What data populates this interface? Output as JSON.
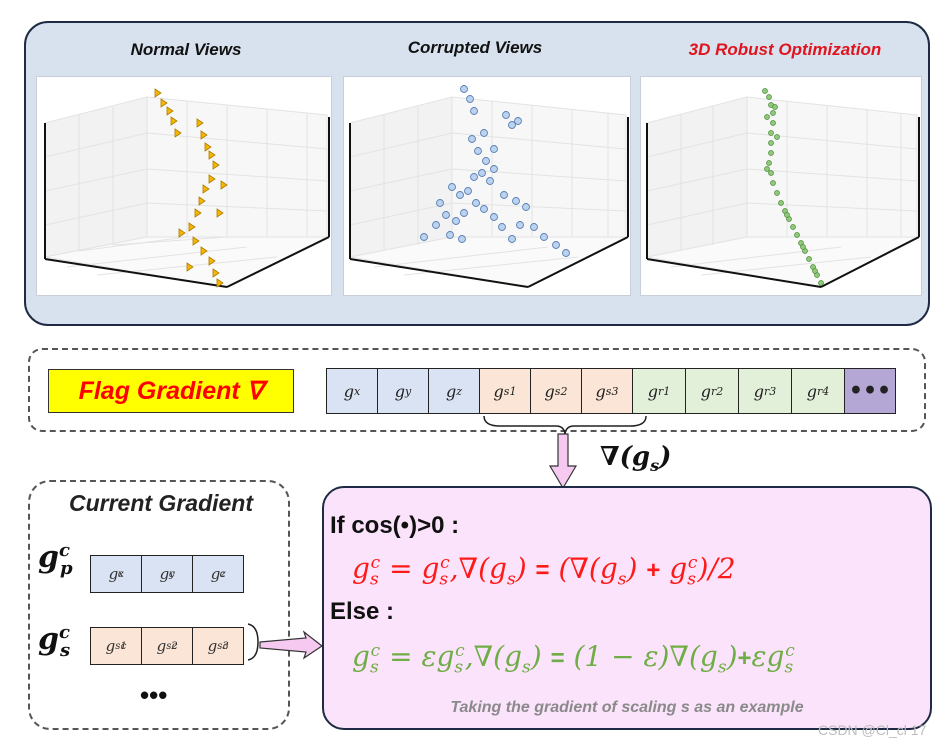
{
  "views": {
    "normal_title": "Normal Views",
    "corrupted_title": "Corrupted Views",
    "robust_title": "3D Robust Optimization",
    "robust_title_color": "#e0141e"
  },
  "flag": {
    "label": "Flag Gradient ∇",
    "cells": [
      {
        "base": "g",
        "sub": "x",
        "color": "blue"
      },
      {
        "base": "g",
        "sub": "y",
        "color": "blue"
      },
      {
        "base": "g",
        "sub": "z",
        "color": "blue"
      },
      {
        "base": "g",
        "sub": "s1",
        "color": "orange"
      },
      {
        "base": "g",
        "sub": "s2",
        "color": "orange"
      },
      {
        "base": "g",
        "sub": "s3",
        "color": "orange"
      },
      {
        "base": "g",
        "sub": "r1",
        "color": "green"
      },
      {
        "base": "g",
        "sub": "r2",
        "color": "green"
      },
      {
        "base": "g",
        "sub": "r3",
        "color": "green"
      },
      {
        "base": "g",
        "sub": "r4",
        "color": "green"
      },
      {
        "base": "•••",
        "sub": "",
        "color": "purple"
      }
    ],
    "arrow_label_main": "∇(g",
    "arrow_label_sub": "s",
    "arrow_label_close": ")"
  },
  "current": {
    "title": "Current Gradient",
    "p_symbol": "g",
    "p_sup": "c",
    "p_sub": "p",
    "s_symbol": "g",
    "s_sup": "c",
    "s_sub": "s",
    "p_cells": [
      "x",
      "y",
      "z"
    ],
    "s_cells": [
      "s1",
      "s2",
      "s3"
    ],
    "ellipsis": "•••"
  },
  "formula": {
    "cond_if": "If cos(•)>0 :",
    "cond_else": "Else :",
    "if_color": "#ff1a1a",
    "else_color": "#70ad47",
    "note": "Taking the gradient of scaling s as an example"
  },
  "watermark": "CSDN @Cl_cl 17"
}
